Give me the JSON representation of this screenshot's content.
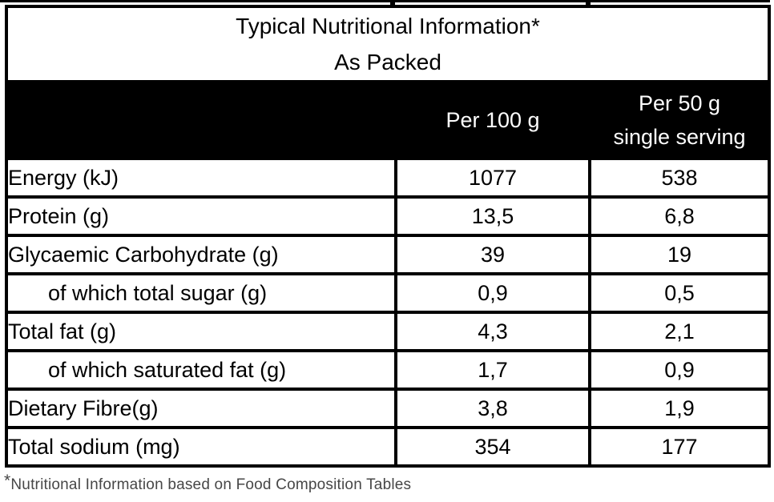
{
  "table": {
    "title_line1": "Typical Nutritional Information*",
    "title_line2": "As Packed",
    "header": {
      "label_col": "",
      "per100": "Per 100 g",
      "per50_line1": "Per 50 g",
      "per50_line2": "single serving"
    },
    "rows": [
      {
        "label": "Energy (kJ)",
        "per_100g": "1077",
        "per_50g": "538",
        "indent": false
      },
      {
        "label": "Protein (g)",
        "per_100g": "13,5",
        "per_50g": "6,8",
        "indent": false
      },
      {
        "label": "Glycaemic Carbohydrate (g)",
        "per_100g": "39",
        "per_50g": "19",
        "indent": false
      },
      {
        "label": "of which total sugar (g)",
        "per_100g": "0,9",
        "per_50g": "0,5",
        "indent": true
      },
      {
        "label": "Total fat (g)",
        "per_100g": "4,3",
        "per_50g": "2,1",
        "indent": false
      },
      {
        "label": "of which saturated fat (g)",
        "per_100g": "1,7",
        "per_50g": "0,9",
        "indent": true
      },
      {
        "label": "Dietary Fibre(g)",
        "per_100g": "3,8",
        "per_50g": "1,9",
        "indent": false
      },
      {
        "label": "Total sodium (mg)",
        "per_100g": "354",
        "per_50g": "177",
        "indent": false
      }
    ]
  },
  "footnote": {
    "marker": "*",
    "text": "Nutritional Information based on Food Composition Tables"
  },
  "colors": {
    "border": "#000000",
    "header_bg": "#000000",
    "header_text": "#ffffff",
    "body_text": "#000000",
    "footnote_text": "#474747"
  }
}
